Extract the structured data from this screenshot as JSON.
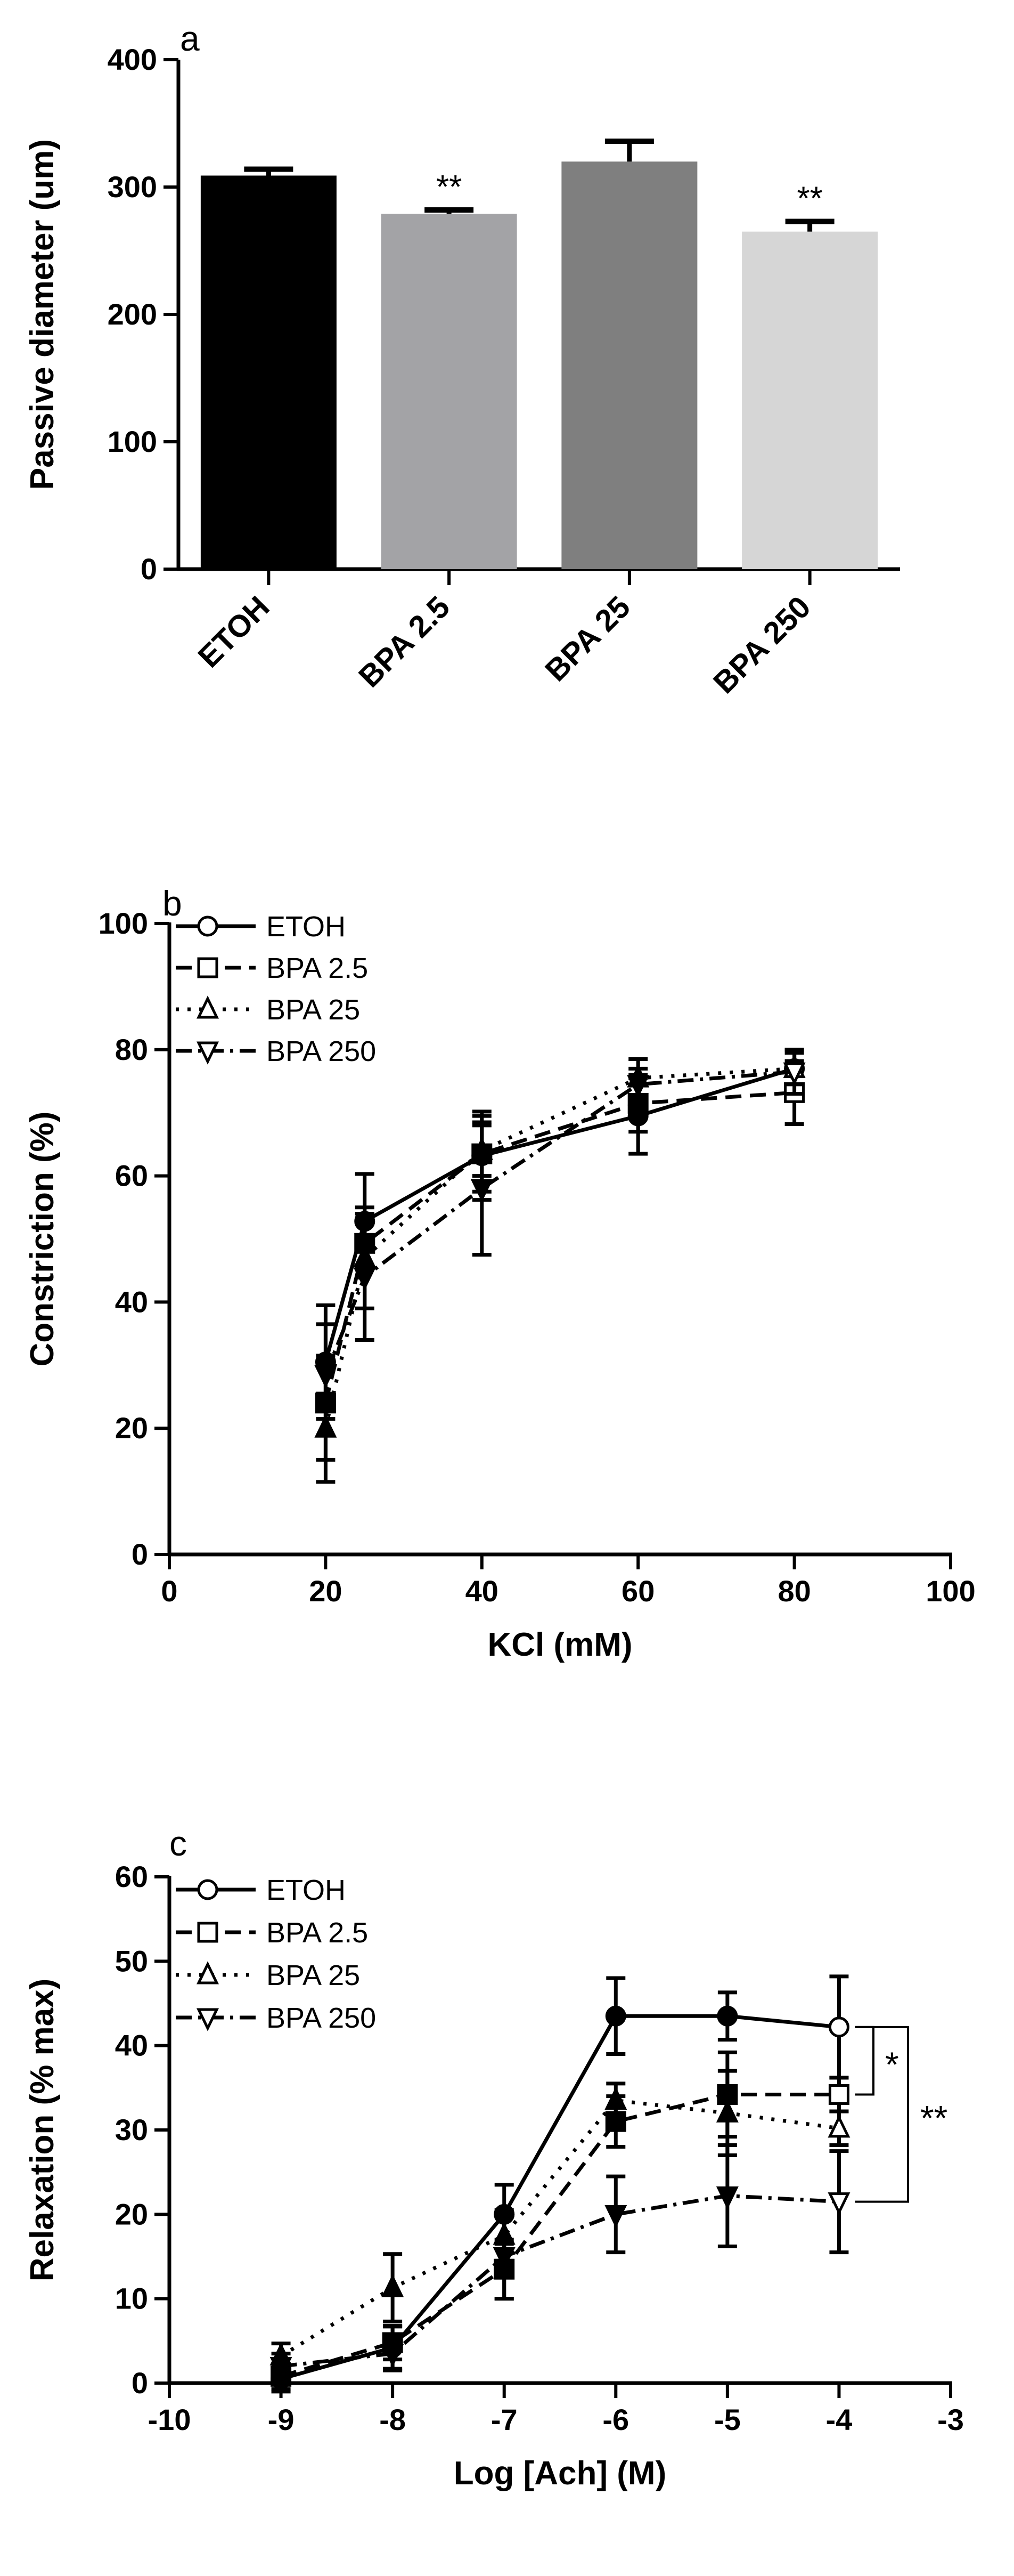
{
  "chart_data": [
    {
      "panel_label": "a",
      "type": "bar",
      "categories": [
        "ETOH",
        "BPA 2.5",
        "BPA 25",
        "BPA 250"
      ],
      "values": [
        309,
        279,
        320,
        265
      ],
      "errors": [
        5,
        3,
        16,
        8
      ],
      "significance": [
        "",
        "**",
        "",
        "**"
      ],
      "colors": [
        "#000000",
        "#a3a3a6",
        "#7f7f7f",
        "#d6d6d6"
      ],
      "ylabel": "Passive diameter (um)",
      "xlabel": "",
      "ylim": [
        0,
        400
      ],
      "yticks": [
        "0",
        "100",
        "200",
        "300",
        "400"
      ],
      "grid": false
    },
    {
      "panel_label": "b",
      "type": "line",
      "xlabel": "KCl (mM)",
      "ylabel": "Constriction (%)",
      "xlim": [
        0,
        100
      ],
      "ylim": [
        0,
        100
      ],
      "xticks": [
        "0",
        "20",
        "40",
        "60",
        "80",
        "100"
      ],
      "yticks": [
        "0",
        "20",
        "40",
        "60",
        "80",
        "100"
      ],
      "legend_position": "top-left",
      "grid": false,
      "x": [
        20,
        25,
        40,
        60,
        80
      ],
      "series": [
        {
          "name": "ETOH",
          "marker": "circle",
          "dash": "solid",
          "values": [
            30.5,
            52.8,
            63.2,
            69.5,
            77
          ],
          "errors": [
            9,
            7.5,
            7,
            6,
            3
          ]
        },
        {
          "name": "BPA 2.5",
          "marker": "square",
          "dash": "dashed",
          "values": [
            24,
            49.3,
            63.5,
            71.5,
            73.2
          ],
          "errors": [
            12.5,
            4,
            6,
            4.5,
            5
          ]
        },
        {
          "name": "BPA 25",
          "marker": "triangle-up",
          "dash": "dotted",
          "values": [
            20,
            47,
            64,
            75.5,
            77
          ],
          "errors": [
            5,
            8,
            4,
            3,
            2.5
          ]
        },
        {
          "name": "BPA 250",
          "marker": "triangle-down",
          "dash": "dashdot",
          "values": [
            28.5,
            44,
            58,
            74.5,
            76.5
          ],
          "errors": [
            3,
            10,
            10.5,
            2.5,
            3.5
          ]
        }
      ]
    },
    {
      "panel_label": "c",
      "type": "line",
      "xlabel": "Log [Ach] (M)",
      "ylabel": "Relaxation (% max)",
      "xlim": [
        -10,
        -3
      ],
      "ylim": [
        0,
        60
      ],
      "xticks": [
        "-10",
        "-9",
        "-8",
        "-7",
        "-6",
        "-5",
        "-4",
        "-3"
      ],
      "yticks": [
        "0",
        "10",
        "20",
        "30",
        "40",
        "50",
        "60"
      ],
      "legend_position": "top-left",
      "grid": false,
      "x": [
        -9,
        -8,
        -7,
        -6,
        -5,
        -4
      ],
      "series": [
        {
          "name": "ETOH",
          "marker": "circle",
          "dash": "solid",
          "values": [
            0.5,
            4.2,
            20,
            43.5,
            43.5,
            42.2
          ],
          "errors": [
            1.5,
            2.5,
            3.5,
            4.5,
            2.8,
            6
          ]
        },
        {
          "name": "BPA 2.5",
          "marker": "square",
          "dash": "dashed",
          "values": [
            0.8,
            4.8,
            13.5,
            31,
            34.2,
            34.2
          ],
          "errors": [
            1.5,
            2,
            3.5,
            3,
            5,
            2
          ]
        },
        {
          "name": "BPA 25",
          "marker": "triangle-up",
          "dash": "dotted",
          "values": [
            3.2,
            11.3,
            17.5,
            33.5,
            32,
            30.2
          ],
          "errors": [
            1.5,
            4,
            3,
            2,
            5,
            2
          ]
        },
        {
          "name": "BPA 250",
          "marker": "triangle-down",
          "dash": "dashdot",
          "values": [
            2,
            3.5,
            15,
            20,
            22.2,
            21.5
          ],
          "errors": [
            1.5,
            2,
            5,
            4.5,
            6,
            6
          ]
        }
      ],
      "annotations": [
        {
          "text": "*",
          "between": [
            "ETOH",
            "BPA 2.5"
          ],
          "at_x": -4
        },
        {
          "text": "**",
          "between": [
            "ETOH",
            "BPA 250"
          ],
          "at_x": -4
        }
      ]
    }
  ]
}
